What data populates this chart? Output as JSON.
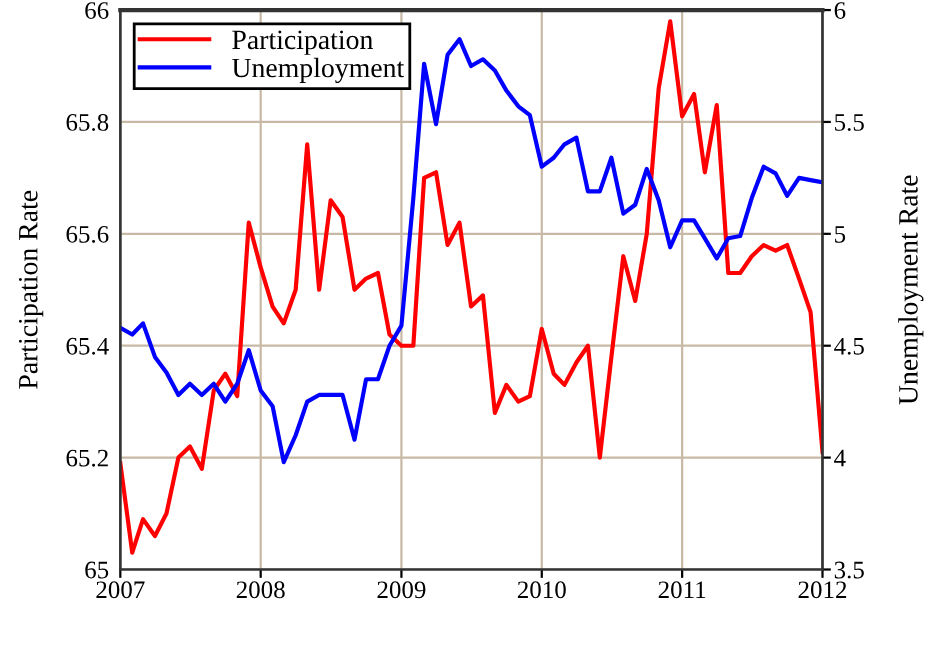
{
  "chart_data": {
    "type": "line",
    "xlabel": null,
    "ylabel": "Participation Rate",
    "y2label": "Unemployment Rate",
    "x": [
      "2007-01",
      "2007-02",
      "2007-03",
      "2007-04",
      "2007-05",
      "2007-06",
      "2007-07",
      "2007-08",
      "2007-09",
      "2007-10",
      "2007-11",
      "2007-12",
      "2008-01",
      "2008-02",
      "2008-03",
      "2008-04",
      "2008-05",
      "2008-06",
      "2008-07",
      "2008-08",
      "2008-09",
      "2008-10",
      "2008-11",
      "2008-12",
      "2009-01",
      "2009-02",
      "2009-03",
      "2009-04",
      "2009-05",
      "2009-06",
      "2009-07",
      "2009-08",
      "2009-09",
      "2009-10",
      "2009-11",
      "2009-12",
      "2010-01",
      "2010-02",
      "2010-03",
      "2010-04",
      "2010-05",
      "2010-06",
      "2010-07",
      "2010-08",
      "2010-09",
      "2010-10",
      "2010-11",
      "2010-12",
      "2011-01",
      "2011-02",
      "2011-03",
      "2011-04",
      "2011-05",
      "2011-06",
      "2011-07",
      "2011-08",
      "2011-09",
      "2011-10",
      "2011-11",
      "2011-12",
      "2012-01"
    ],
    "series": [
      {
        "name": "Participation",
        "color": "#ff0000",
        "values": [
          65.19,
          65.03,
          65.09,
          65.06,
          65.1,
          65.2,
          65.22,
          65.18,
          65.32,
          65.35,
          65.31,
          65.62,
          65.54,
          65.47,
          65.44,
          65.5,
          65.76,
          65.5,
          65.66,
          65.63,
          65.5,
          65.52,
          65.53,
          65.42,
          65.4,
          65.4,
          65.7,
          65.71,
          65.58,
          65.62,
          65.47,
          65.49,
          65.28,
          65.33,
          65.3,
          65.31,
          65.43,
          65.35,
          65.33,
          65.37,
          65.4,
          65.2,
          65.38,
          65.56,
          65.48,
          65.6,
          65.86,
          65.98,
          65.81,
          65.85,
          65.71,
          65.83,
          65.53,
          65.53,
          65.56,
          65.58,
          65.57,
          65.58,
          65.52,
          65.46,
          65.21
        ]
      },
      {
        "name": "Unemployment",
        "color": "#0000ff",
        "axis": "y2",
        "values": [
          4.58,
          4.55,
          4.6,
          4.45,
          4.38,
          4.28,
          4.33,
          4.28,
          4.33,
          4.25,
          4.33,
          4.48,
          4.3,
          4.23,
          3.98,
          4.1,
          4.25,
          4.28,
          4.28,
          4.28,
          4.08,
          4.35,
          4.35,
          4.5,
          4.59,
          5.16,
          5.76,
          5.49,
          5.8,
          5.87,
          5.75,
          5.78,
          5.73,
          5.64,
          5.57,
          5.53,
          5.3,
          5.34,
          5.4,
          5.43,
          5.19,
          5.19,
          5.34,
          5.09,
          5.13,
          5.29,
          5.15,
          4.94,
          5.06,
          5.06,
          4.98,
          4.89,
          4.98,
          4.99,
          5.16,
          5.3,
          5.27,
          5.17,
          5.25,
          5.24,
          5.23
        ]
      }
    ],
    "xlim": [
      "2007-01",
      "2012-01"
    ],
    "xticks": [
      {
        "value": "2007-01",
        "label": "2007"
      },
      {
        "value": "2008-01",
        "label": "2008"
      },
      {
        "value": "2009-01",
        "label": "2009"
      },
      {
        "value": "2010-01",
        "label": "2010"
      },
      {
        "value": "2011-01",
        "label": "2011"
      },
      {
        "value": "2012-01",
        "label": "2012"
      }
    ],
    "ylim": [
      65,
      66
    ],
    "yticks": [
      65,
      65.2,
      65.4,
      65.6,
      65.8,
      66
    ],
    "y2lim": [
      3.5,
      6
    ],
    "y2ticks": [
      3.5,
      4,
      4.5,
      5,
      5.5,
      6
    ],
    "grid": true,
    "legend": "top left",
    "line_style": "solid"
  }
}
